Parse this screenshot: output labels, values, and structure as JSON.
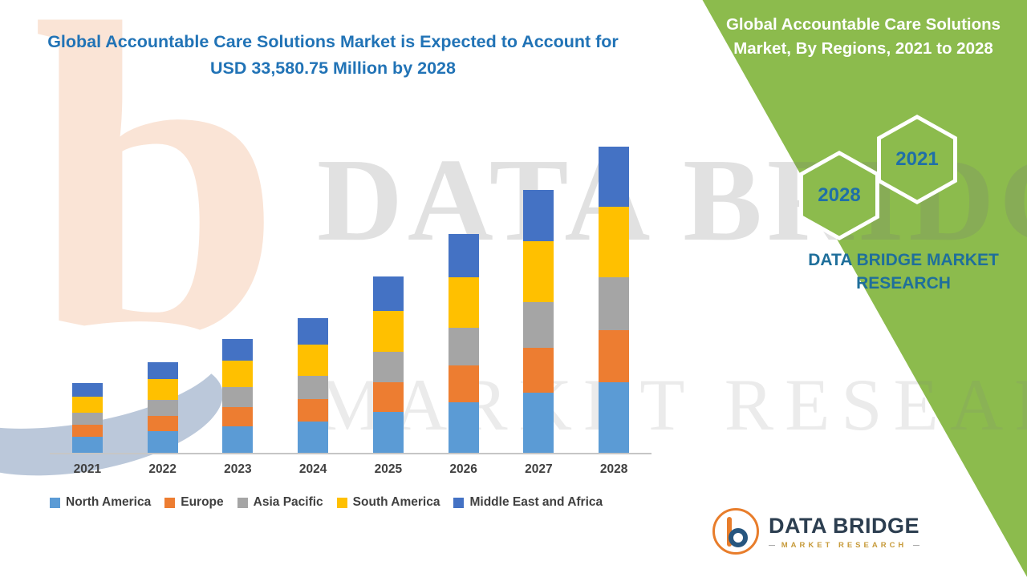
{
  "header": {
    "title": "Global Accountable Care Solutions Market is Expected to Account for USD 33,580.75 Million by 2028"
  },
  "panel": {
    "title": "Global Accountable Care Solutions Market, By Regions, 2021 to 2028",
    "hexagon_left": "2028",
    "hexagon_right": "2021",
    "brand": "DATA BRIDGE MARKET RESEARCH"
  },
  "watermark": {
    "letter": "b",
    "line1": "DATA BRIDGE",
    "line2": "MARKET RESEARCH"
  },
  "footer_logo": {
    "name": "DATA BRIDGE",
    "tagline": "MARKET RESEARCH"
  },
  "chart_data": {
    "type": "bar",
    "stacked": true,
    "title": "Global Accountable Care Solutions Market, By Regions, 2021 to 2028",
    "unit": "USD Million",
    "categories": [
      "2021",
      "2022",
      "2023",
      "2024",
      "2025",
      "2026",
      "2027",
      "2028"
    ],
    "series": [
      {
        "name": "North America",
        "color": "#5B9BD5",
        "values": [
          1760,
          2370,
          2900,
          3430,
          4480,
          5540,
          6590,
          7736
        ]
      },
      {
        "name": "Europe",
        "color": "#ED7D31",
        "values": [
          1320,
          1670,
          2110,
          2460,
          3250,
          4040,
          4920,
          5714
        ]
      },
      {
        "name": "Asia Pacific",
        "color": "#A5A5A5",
        "values": [
          1320,
          1760,
          2200,
          2550,
          3340,
          4130,
          5010,
          5802
        ]
      },
      {
        "name": "South America",
        "color": "#FFC000",
        "values": [
          1760,
          2290,
          2900,
          3430,
          4480,
          5540,
          6680,
          7736
        ]
      },
      {
        "name": "Middle East and Africa",
        "color": "#4472C4",
        "values": [
          1490,
          1850,
          2370,
          2900,
          3780,
          4750,
          5630,
          6592.75
        ]
      }
    ],
    "legend_position": "bottom",
    "y_axis_visible": false,
    "ylim": [
      0,
      34000
    ]
  }
}
